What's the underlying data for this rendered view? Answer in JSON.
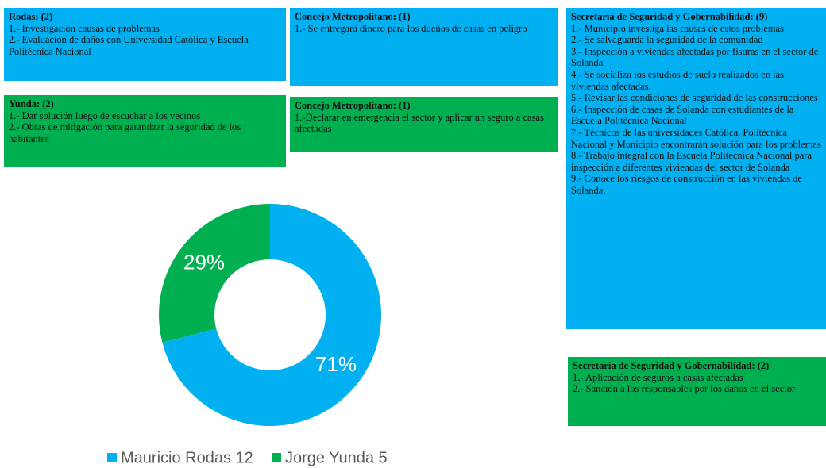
{
  "boxes": [
    {
      "color": "#00b0f0",
      "title": "Rodas: (2)",
      "items": [
        "1.- Investigación causas de problemas",
        "2.- Evaluación de daños con Universidad Católica y Escuela Politécnica Nacional"
      ]
    },
    {
      "color": "#00b0f0",
      "title": "Concejo Metropolitano: (1)",
      "items": [
        "1.- Se entregará dinero para los dueños de casas en peligro"
      ]
    },
    {
      "color": "#00b0f0",
      "title": "Secretaría de Seguridad y Gobernabilidad: (9)",
      "items": [
        "1.- Municipio investiga las causas de estos problemas",
        "2.- Se salvaguarda la seguridad de la comunidad",
        "3.- Inspección a viviendas afectadas por fisuras en el sector de Solanda",
        "4.- Se socializa los estudios de suelo realizados en las viviendas afectadas.",
        "5.- Revisar las condiciones de seguridad de las construcciones",
        "6.- Inspección de casas de Solanda con estudiantes de la Escuela Politécnica Nacional",
        "7.- Técnicos de las universidades Católica, Politécnica Nacional y Municipio encontrarán solución para los problemas",
        "8.- Trabajo integral con la Escuela Politécnica Nacional para inspección a diferentes viviendas del sector de Solanda",
        "9.- Conoce los riesgos de construcción en las viviendas de Solanda."
      ]
    },
    {
      "color": "#00b050",
      "title": "Yunda: (2)",
      "items": [
        "1.- Dar solución luego de escuchar a los vecinos",
        "2.- Obras de mitigación para garantizar la seguridad de los habitantes"
      ]
    },
    {
      "color": "#00b050",
      "title": "Concejo Metropolitano: (1)",
      "items": [
        "1.-Declarar en emergencia el sector y aplicar un seguro a casas afectadas"
      ]
    },
    {
      "color": "#00b050",
      "title": "Secretaria de Seguridad y Gobernabilidad: (2)",
      "items": [
        "1.- Aplicación de seguros a casas afectadas",
        "2.- Sanción a los responsables por los daños en el sector"
      ]
    }
  ],
  "chart_data": {
    "type": "pie",
    "donut": true,
    "categories": [
      "Mauricio Rodas 12",
      "Jorge Yunda 5"
    ],
    "values": [
      71,
      29
    ],
    "value_labels": [
      "71%",
      "29%"
    ],
    "colors": [
      "#00b0f0",
      "#00b050"
    ]
  }
}
